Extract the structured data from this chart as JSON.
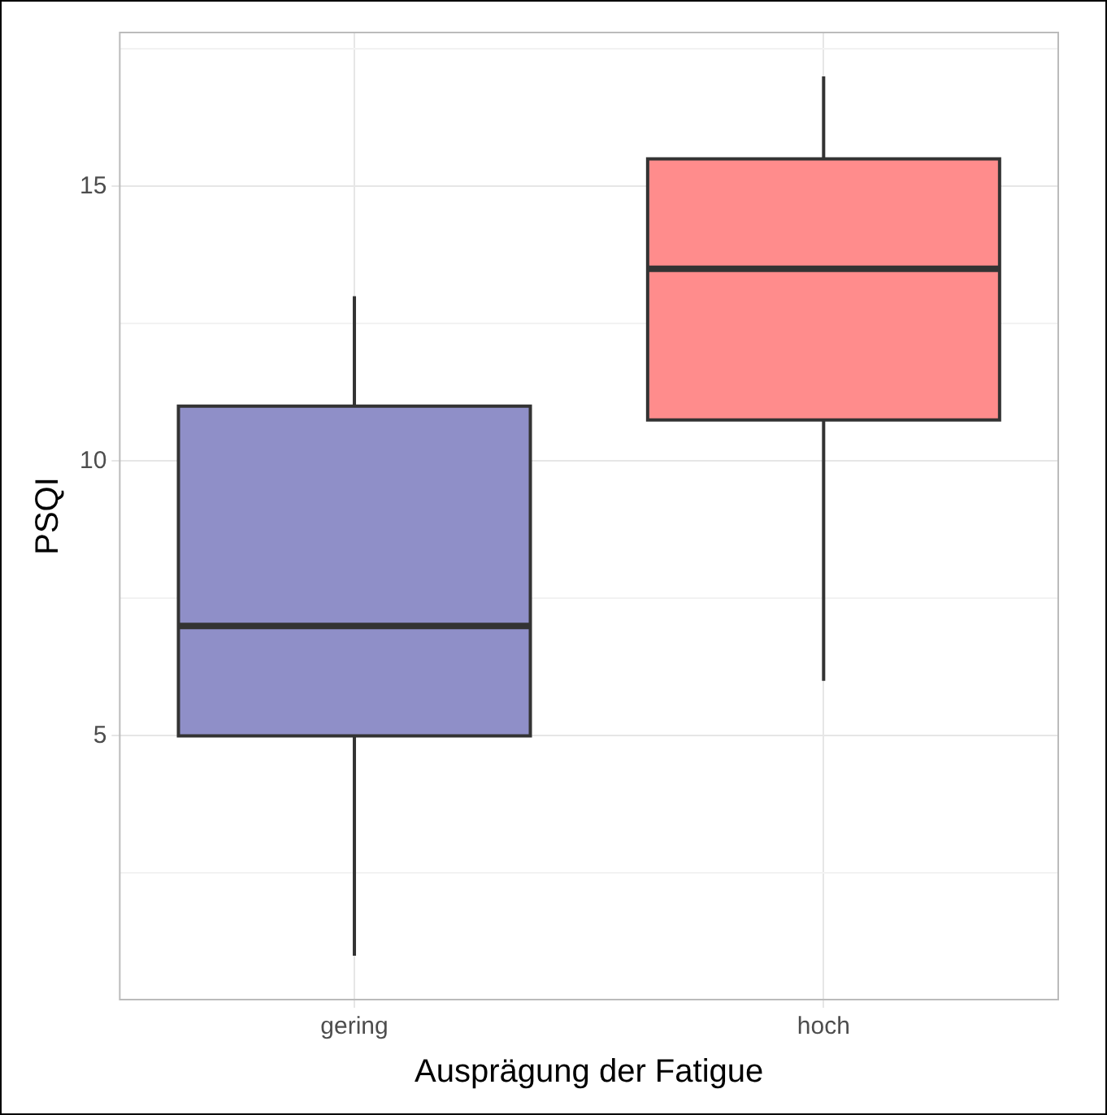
{
  "chart_data": {
    "type": "box",
    "xlabel": "Ausprägung der Fatigue",
    "ylabel": "PSQI",
    "categories": [
      "gering",
      "hoch"
    ],
    "colors": [
      "#8f8fc8",
      "#ff8c8c"
    ],
    "boxes": [
      {
        "low": 1,
        "q1": 5,
        "median": 7,
        "q3": 11,
        "high": 13
      },
      {
        "low": 6,
        "q1": 10.75,
        "median": 13.5,
        "q3": 15.5,
        "high": 17
      }
    ],
    "ylim": [
      0.2,
      17.8
    ],
    "yticks": [
      {
        "value": 2.5,
        "label": null
      },
      5,
      {
        "value": 7.5,
        "label": null
      },
      10,
      {
        "value": 12.5,
        "label": null
      },
      15,
      {
        "value": 17.5,
        "label": null
      }
    ],
    "grid": true,
    "legend": false
  }
}
